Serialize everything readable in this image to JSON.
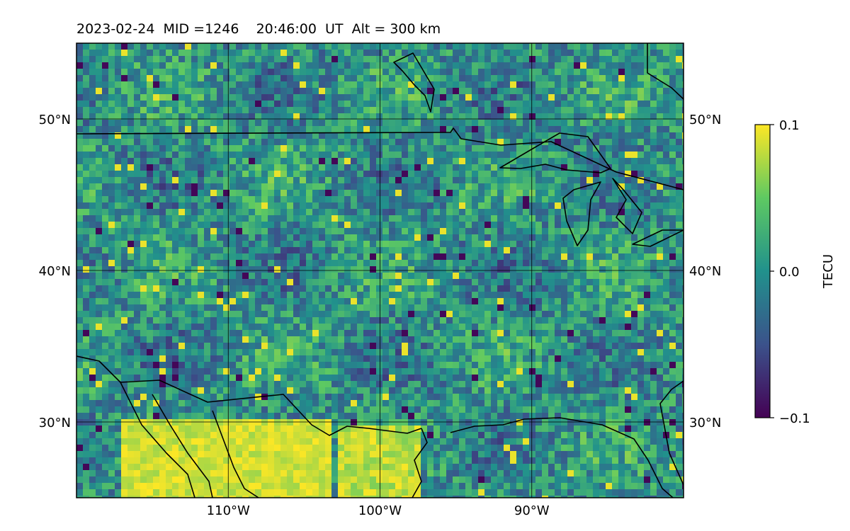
{
  "title": "2023-02-24  MID =1246    20:46:00  UT  Alt = 300 km",
  "map": {
    "lon_range": [
      -120,
      -80
    ],
    "lat_range": [
      25,
      55
    ],
    "lat_ticks": [
      {
        "value": 50,
        "label": "50°N"
      },
      {
        "value": 40,
        "label": "40°N"
      },
      {
        "value": 30,
        "label": "30°N"
      }
    ],
    "lon_ticks": [
      {
        "value": -110,
        "label": "110°W"
      },
      {
        "value": -100,
        "label": "100°W"
      },
      {
        "value": -90,
        "label": "90°W"
      }
    ],
    "gridlines": true,
    "boundaries": "coastlines and country borders"
  },
  "colorbar": {
    "label": "TECU",
    "colormap": "viridis",
    "min": -0.1,
    "max": 0.1,
    "ticks": [
      {
        "value": 0.1,
        "label": "0.1"
      },
      {
        "value": 0.0,
        "label": "0.0"
      },
      {
        "value": -0.1,
        "label": "−0.1"
      }
    ],
    "colors": [
      "#440154",
      "#3b528b",
      "#21918c",
      "#5ec962",
      "#fde725"
    ]
  }
}
